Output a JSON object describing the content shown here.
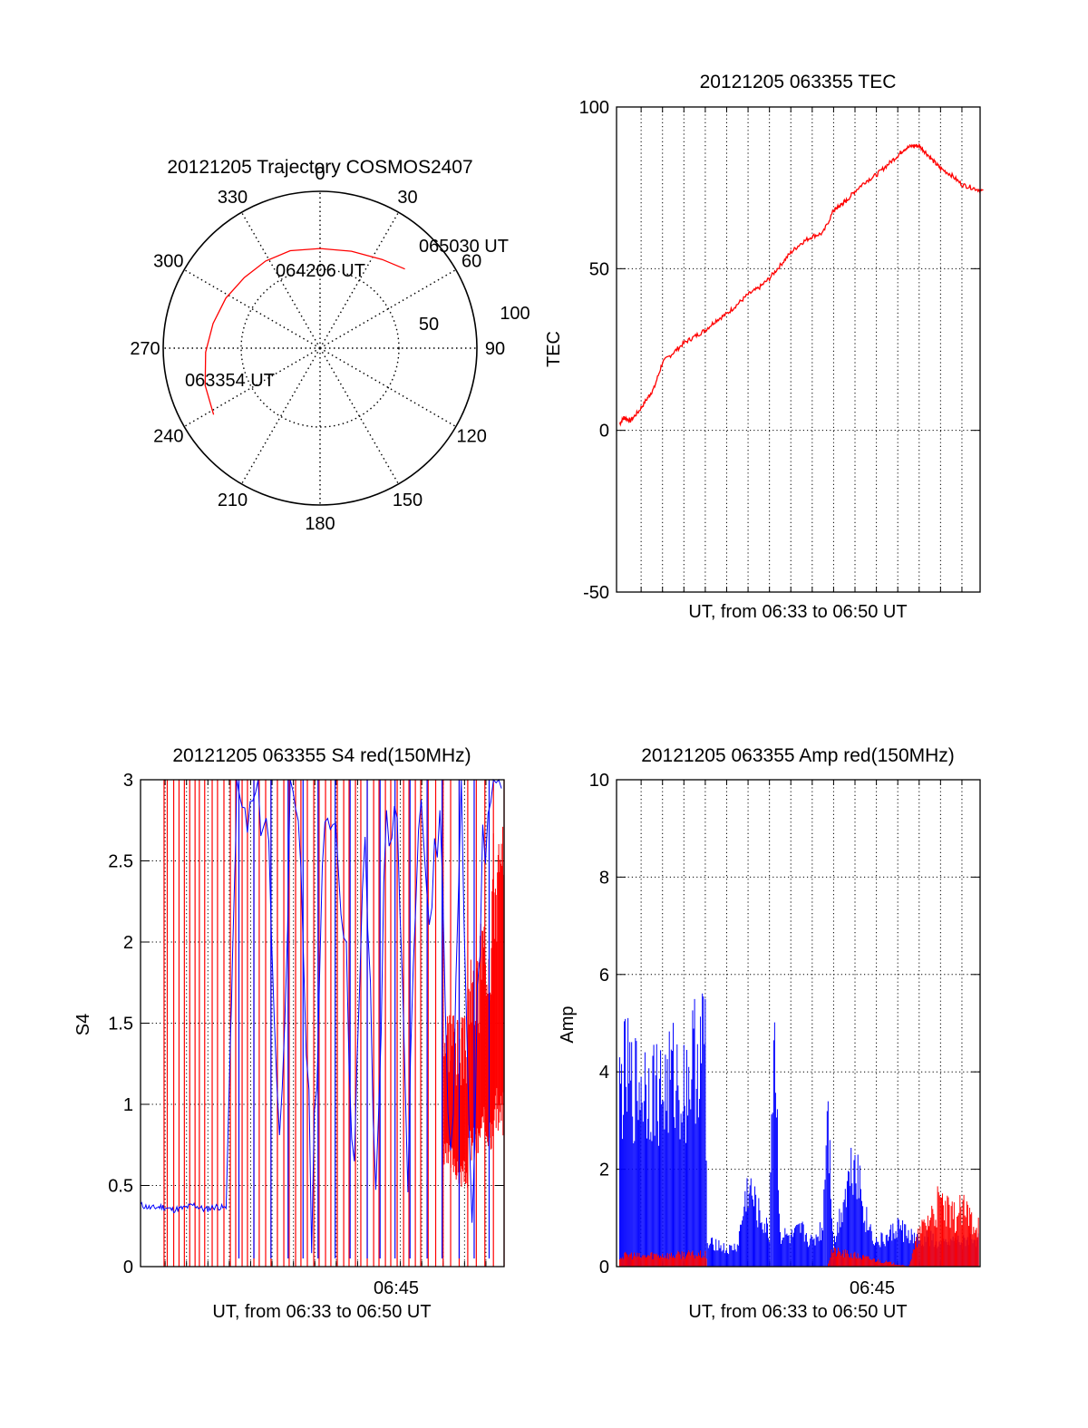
{
  "colors": {
    "red": "#ff0000",
    "blue": "#0000ff",
    "axis": "#000000"
  },
  "chart_data": [
    {
      "id": "trajectory",
      "type": "polar",
      "title": "20121205 Trajectory COSMOS2407",
      "azimuth_labels": [
        "0",
        "30",
        "60",
        "90",
        "120",
        "150",
        "180",
        "210",
        "240",
        "270",
        "300",
        "330"
      ],
      "radius_labels": [
        "50",
        "100"
      ],
      "radius_max": 100,
      "track": [
        {
          "az": 238,
          "r": 80
        },
        {
          "az": 252,
          "r": 77
        },
        {
          "az": 268,
          "r": 73
        },
        {
          "az": 283,
          "r": 70
        },
        {
          "az": 298,
          "r": 68
        },
        {
          "az": 313,
          "r": 66
        },
        {
          "az": 328,
          "r": 65.5
        },
        {
          "az": 343,
          "r": 65
        },
        {
          "az": 0,
          "r": 63.5
        },
        {
          "az": 18,
          "r": 65
        },
        {
          "az": 35,
          "r": 69
        },
        {
          "az": 47,
          "r": 74
        }
      ],
      "annotations": [
        "065030 UT",
        "064206 UT",
        "063354 UT"
      ]
    },
    {
      "id": "tec",
      "type": "line",
      "title": "20121205 063355 TEC",
      "ylabel": "TEC",
      "xlabel": "UT, from 06:33 to 06:50 UT",
      "ylim": [
        -50,
        100
      ],
      "yticks": [
        "100",
        "50",
        "0",
        "-50"
      ],
      "xlim": [
        0,
        17
      ],
      "series": [
        {
          "color": "red",
          "x": [
            0,
            0.2,
            0.5,
            0.9,
            1.3,
            1.6,
            2.0,
            2.5,
            3.0,
            3.5,
            4.0,
            4.5,
            5.0,
            5.5,
            6.0,
            6.5,
            7.0,
            7.5,
            8.0,
            8.5,
            9.0,
            9.5,
            10.0,
            10.2,
            10.4,
            10.6,
            11.0,
            11.5,
            12.0,
            12.5,
            13.0,
            13.3,
            13.7,
            14.0,
            14.3,
            14.7,
            15.0,
            15.5,
            16.0,
            16.5,
            17.0
          ],
          "y": [
            2,
            4,
            3,
            6,
            10,
            13,
            21,
            24,
            27,
            29,
            31,
            34,
            36,
            39,
            42,
            44,
            47,
            51,
            55,
            58,
            60,
            61,
            68,
            69,
            70,
            71,
            74,
            77,
            79,
            82,
            85,
            87,
            88,
            88,
            86,
            83,
            81,
            79,
            76,
            75,
            74
          ]
        }
      ]
    },
    {
      "id": "s4",
      "type": "line",
      "title": "20121205 063355 S4 red(150MHz)",
      "ylabel": "S4",
      "xlabel": "UT, from 06:33 to 06:50 UT",
      "ylim": [
        0,
        3
      ],
      "yticks": [
        "3",
        "2.5",
        "2",
        "1.5",
        "1",
        "0.5",
        "0"
      ],
      "xlim": [
        0,
        17
      ],
      "xtick_labels": [
        {
          "x": 12,
          "label": "06:45"
        }
      ],
      "series": [
        {
          "name": "",
          "color": "red",
          "spike_x": [
            0.1,
            0.25,
            0.55,
            0.8,
            1.05,
            1.3,
            1.55,
            1.75,
            2.0,
            2.35,
            2.6,
            2.9,
            3.2,
            3.45,
            3.75,
            4.0,
            4.3,
            4.55,
            4.85,
            5.1,
            5.4,
            5.7,
            5.95,
            6.25,
            6.5,
            6.8,
            7.1,
            7.35,
            7.65,
            7.9,
            8.2,
            8.5,
            8.75,
            9.05,
            9.3,
            9.6,
            9.9,
            10.15,
            10.45,
            10.7,
            11.0,
            11.3,
            11.55,
            11.85,
            12.1,
            12.45,
            12.8,
            13.15,
            13.5,
            13.9,
            14.3,
            14.7,
            15.1,
            15.5,
            16.0,
            16.4,
            16.8
          ],
          "band": {
            "x_from": 14.2,
            "x_to": 17.0,
            "low": [
              0.7,
              0.6,
              0.8,
              0.9,
              1.0
            ],
            "high": [
              1.4,
              1.3,
              1.6,
              1.9,
              2.3
            ]
          }
        },
        {
          "name": "",
          "color": "blue",
          "x": [
            0,
            0.5,
            1.0,
            1.5,
            2.0,
            2.5,
            3.0,
            3.5,
            4.0,
            4.5,
            5.0,
            5.5,
            6.0,
            6.5,
            7.0,
            7.5,
            8.0,
            8.5,
            9.0,
            9.5,
            10.0,
            10.5,
            11.0,
            11.5,
            12.0,
            12.5,
            13.0,
            13.5,
            14.0,
            14.5,
            15.0,
            15.5,
            16.0,
            16.5,
            17.0
          ],
          "y": [
            0.38,
            0.36,
            0.37,
            0.35,
            0.36,
            0.38,
            0.35,
            0.37,
            0.36,
            2.9,
            2.7,
            2.95,
            2.6,
            0.7,
            2.8,
            2.5,
            0.3,
            2.4,
            2.9,
            2.2,
            0.6,
            2.7,
            0.4,
            2.8,
            2.6,
            0.6,
            2.9,
            2.3,
            2.8,
            0.5,
            2.9,
            0.4,
            2.6,
            2.9,
            2.8
          ],
          "spike_x": [
            4.6,
            5.3,
            6.1,
            6.9,
            7.6,
            8.3,
            9.1,
            9.8,
            10.6,
            11.2,
            11.9,
            12.6,
            13.4,
            14.1,
            14.9,
            15.6,
            16.3
          ]
        }
      ]
    },
    {
      "id": "amp",
      "type": "area",
      "title": "20121205 063355 Amp red(150MHz)",
      "ylabel": "Amp",
      "xlabel": "UT, from 06:33 to 06:50 UT",
      "ylim": [
        0,
        10
      ],
      "yticks": [
        "10",
        "8",
        "6",
        "4",
        "2",
        "0"
      ],
      "xlim": [
        0,
        17
      ],
      "xtick_labels": [
        {
          "x": 12,
          "label": "06:45"
        }
      ],
      "series": [
        {
          "name": "",
          "color": "blue",
          "x": [
            0,
            0.3,
            0.6,
            1.0,
            1.5,
            2.0,
            2.5,
            3.0,
            3.5,
            4.0,
            4.1,
            4.5,
            5.0,
            5.5,
            6.0,
            6.5,
            7.0,
            7.2,
            7.5,
            8.0,
            8.5,
            9.0,
            9.5,
            9.7,
            10.0,
            10.5,
            11.0,
            11.5,
            12.0,
            12.5,
            13.0,
            13.5,
            14.0,
            14.5,
            15.0,
            15.5,
            16.0,
            16.5,
            17.0
          ],
          "y": [
            4.3,
            4.8,
            4.4,
            4.6,
            4.5,
            4.3,
            4.7,
            4.4,
            5.2,
            5.6,
            0.5,
            0.6,
            0.4,
            0.5,
            2.0,
            1.3,
            0.8,
            6.5,
            0.8,
            0.7,
            0.9,
            0.6,
            1.0,
            4.4,
            0.5,
            1.8,
            2.8,
            1.2,
            0.6,
            0.7,
            1.0,
            0.8,
            0.6,
            0.7,
            0.5,
            0.6,
            0.6,
            0.7,
            0.6
          ]
        },
        {
          "name": "",
          "color": "red",
          "x": [
            0,
            0.5,
            1.0,
            1.5,
            2.0,
            2.5,
            3.0,
            3.5,
            4.0,
            4.1,
            9.7,
            9.9,
            13.5,
            14.0,
            14.5,
            15.0,
            15.5,
            16.0,
            16.5,
            17.0
          ],
          "y": [
            0.25,
            0.3,
            0.25,
            0.3,
            0.3,
            0.28,
            0.32,
            0.3,
            0.3,
            0.0,
            0.0,
            0.4,
            0.0,
            0.8,
            1.3,
            1.6,
            1.2,
            1.4,
            1.2,
            1.1
          ]
        }
      ]
    }
  ]
}
